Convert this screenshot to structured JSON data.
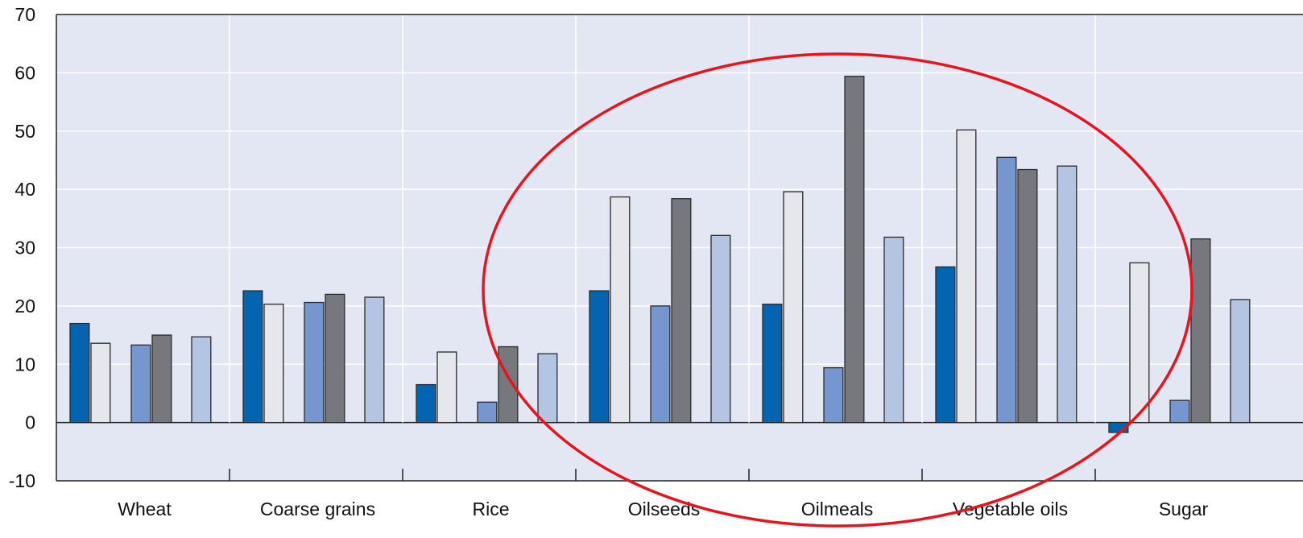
{
  "chart_data": {
    "type": "bar",
    "categories": [
      "Wheat",
      "Coarse grains",
      "Rice",
      "Oilseeds",
      "Oilmeals",
      "Vegetable oils",
      "Sugar"
    ],
    "series": [
      {
        "values": [
          17,
          22.6,
          6.5,
          22.6,
          20.3,
          26.7,
          -1.7
        ]
      },
      {
        "values": [
          13.6,
          20.3,
          12.1,
          38.7,
          39.6,
          50.2,
          27.4
        ]
      },
      {
        "values": [
          13.3,
          20.6,
          3.5,
          20,
          9.4,
          45.5,
          3.8
        ]
      },
      {
        "values": [
          15,
          22,
          13,
          38.4,
          59.4,
          43.4,
          31.5
        ]
      },
      {
        "values": [
          14.7,
          21.5,
          11.8,
          32.1,
          31.8,
          44,
          21.1
        ]
      }
    ],
    "ylim": [
      -10,
      70
    ],
    "yticks": [
      70,
      60,
      50,
      40,
      30,
      20,
      10,
      0,
      -10
    ],
    "grid": true,
    "colors": [
      "#0564b0",
      "#e6e7ec",
      "#7596cf",
      "#76787e",
      "#b4c5e4"
    ],
    "background": "#e3e7f4",
    "annotation": {
      "shape": "ellipse",
      "color": "#e8131b"
    }
  }
}
